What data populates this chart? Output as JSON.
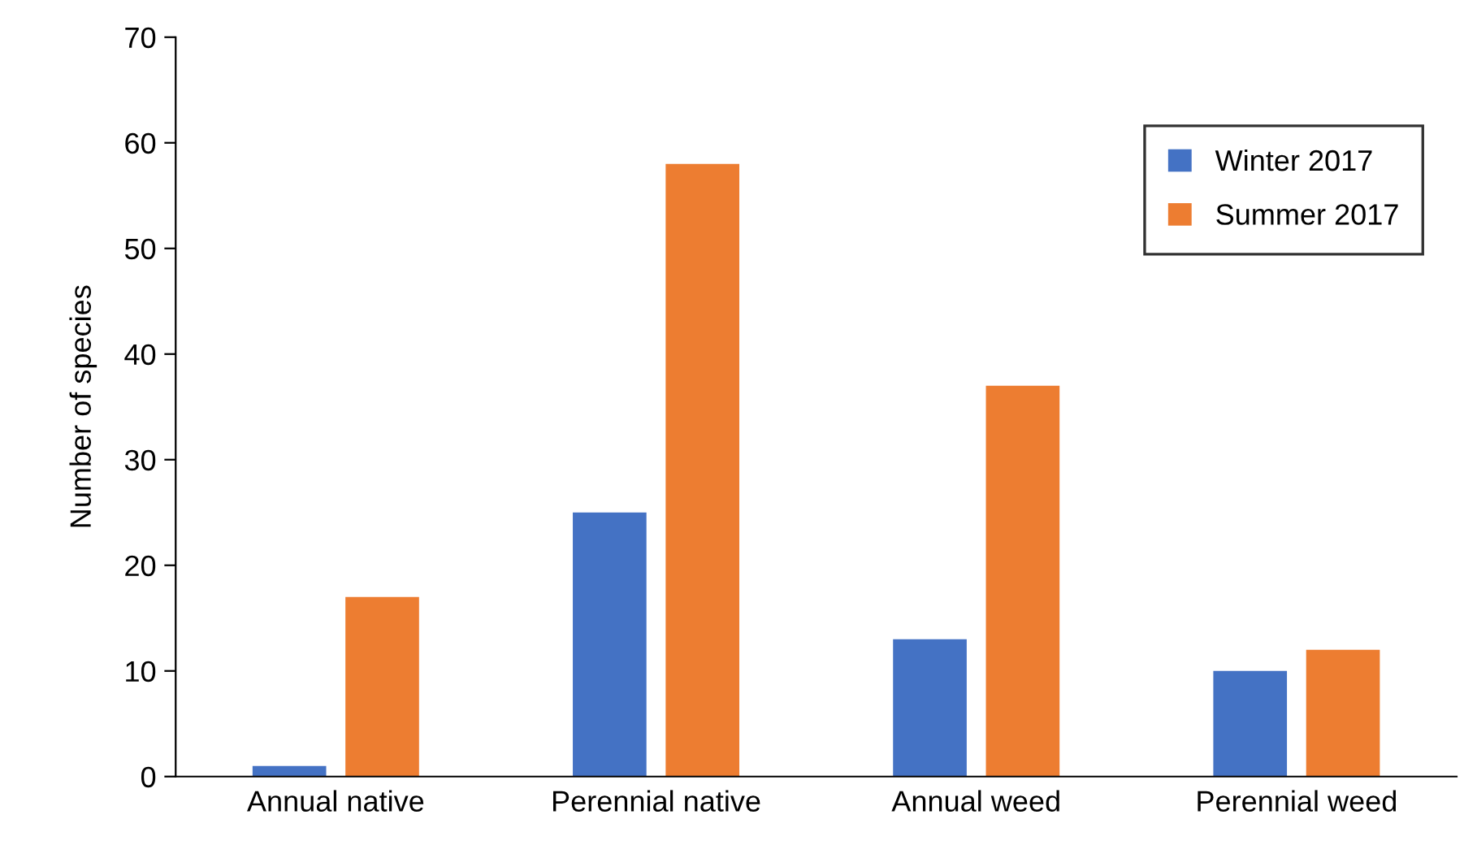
{
  "chart_data": {
    "type": "bar",
    "ylabel": "Number of species",
    "categories": [
      "Annual native",
      "Perennial native",
      "Annual weed",
      "Perennial weed"
    ],
    "series": [
      {
        "name": "Winter 2017",
        "color": "#4472c4",
        "values": [
          1,
          25,
          13,
          10
        ]
      },
      {
        "name": "Summer 2017",
        "color": "#ed7d31",
        "values": [
          17,
          58,
          37,
          12
        ]
      }
    ],
    "ylim": [
      0,
      70
    ],
    "yticks": [
      0,
      10,
      20,
      30,
      40,
      50,
      60,
      70
    ],
    "grid": false,
    "legend": "top right"
  }
}
